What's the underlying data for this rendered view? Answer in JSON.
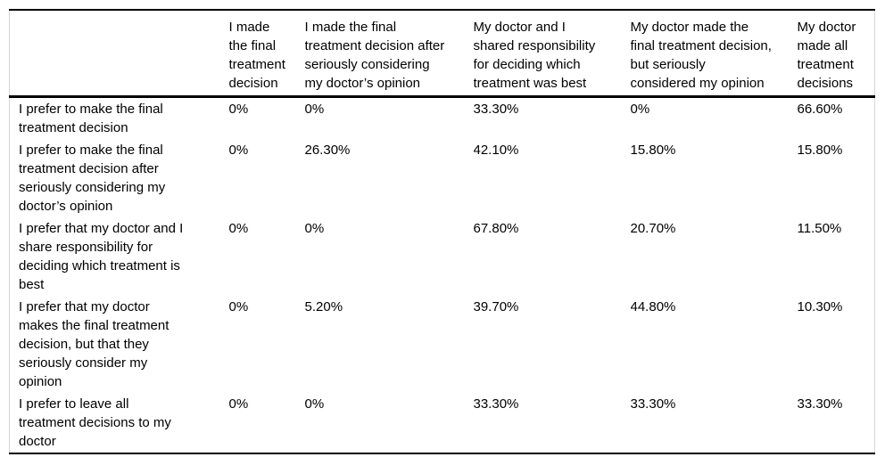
{
  "chart_data": {
    "type": "table",
    "columns": [
      "",
      "I made the final treatment decision",
      "I made the final treatment decision after seriously considering my doctor’s opinion",
      "My doctor and I shared responsibility for deciding which treatment was best",
      "My doctor made the final treatment decision, but seriously considered my opinion",
      "My doctor made all treatment decisions"
    ],
    "rows": [
      {
        "label": "I prefer to make the final treatment decision",
        "values": [
          "0%",
          "0%",
          "33.30%",
          "0%",
          "66.60%"
        ]
      },
      {
        "label": "I prefer to make the final treatment decision after seriously considering my doctor’s opinion",
        "values": [
          "0%",
          "26.30%",
          "42.10%",
          "15.80%",
          "15.80%"
        ]
      },
      {
        "label": "I prefer that my doctor and I share responsibility for deciding which treatment is best",
        "values": [
          "0%",
          "0%",
          "67.80%",
          "20.70%",
          "11.50%"
        ]
      },
      {
        "label": "I prefer that my doctor makes the final treatment decision, but that they seriously consider my opinion",
        "values": [
          "0%",
          "5.20%",
          "39.70%",
          "44.80%",
          "10.30%"
        ]
      },
      {
        "label": "I prefer to leave all treatment decisions to my doctor",
        "values": [
          "0%",
          "0%",
          "33.30%",
          "33.30%",
          "33.30%"
        ]
      }
    ]
  },
  "table": {
    "headers": {
      "blank": "",
      "h1": "I made\nthe final\ntreatment\ndecision",
      "h2": "I made the final\ntreatment decision after\nseriously considering\nmy doctor’s opinion",
      "h3": "My doctor and I\nshared responsibility\nfor deciding which\ntreatment was best",
      "h4": "My doctor made the\nfinal treatment decision,\nbut seriously\nconsidered my opinion",
      "h5": "My doctor\nmade all\ntreatment\ndecisions"
    },
    "rows": [
      {
        "label": "I prefer to make the final\ntreatment decision",
        "values": [
          "0%",
          "0%",
          "33.30%",
          "0%",
          "66.60%"
        ]
      },
      {
        "label": "I prefer to make the final\ntreatment decision after\nseriously considering my\ndoctor’s opinion",
        "values": [
          "0%",
          "26.30%",
          "42.10%",
          "15.80%",
          "15.80%"
        ]
      },
      {
        "label": "I prefer that my doctor and I\nshare responsibility for\ndeciding which treatment is\nbest",
        "values": [
          "0%",
          "0%",
          "67.80%",
          "20.70%",
          "11.50%"
        ]
      },
      {
        "label": "I prefer that my doctor\nmakes the final treatment\ndecision, but that they\nseriously consider my\nopinion",
        "values": [
          "0%",
          "5.20%",
          "39.70%",
          "44.80%",
          "10.30%"
        ]
      },
      {
        "label": "I prefer to leave all\ntreatment decisions to my\ndoctor",
        "values": [
          "0%",
          "0%",
          "33.30%",
          "33.30%",
          "33.30%"
        ]
      }
    ]
  }
}
